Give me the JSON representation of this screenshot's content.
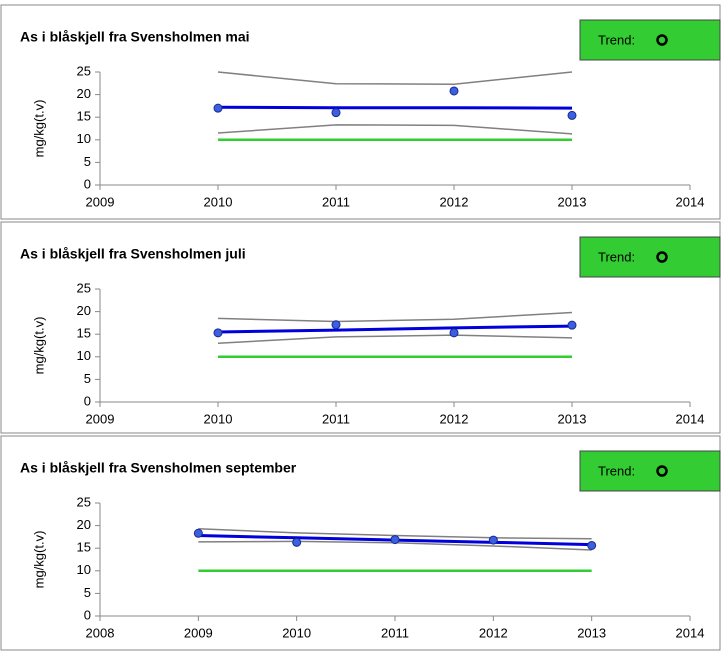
{
  "chart_data": [
    {
      "type": "line",
      "title": "As i blåskjell fra Svensholmen mai",
      "trend_label": "Trend:",
      "ylabel": "mg/kg(t.v)",
      "x": [
        2010,
        2011,
        2012,
        2013
      ],
      "xlim": [
        2009,
        2014
      ],
      "xticks": [
        2009,
        2010,
        2011,
        2012,
        2013,
        2014
      ],
      "ylim": [
        0,
        25
      ],
      "yticks": [
        0,
        5,
        10,
        15,
        20,
        25
      ],
      "points": {
        "color": "#3a5fe0",
        "values": [
          17,
          16,
          20.8,
          15.4
        ]
      },
      "series": [
        {
          "color": "#0000dd",
          "values": [
            17.2,
            17.1,
            17.1,
            17.0
          ]
        },
        {
          "color": "#808080",
          "values": [
            25,
            22.4,
            22.3,
            25
          ]
        },
        {
          "color": "#808080",
          "values": [
            11.5,
            13.3,
            13.2,
            11.3
          ]
        },
        {
          "color": "#33cc33",
          "values": [
            10,
            10,
            10,
            10
          ]
        }
      ]
    },
    {
      "type": "line",
      "title": "As i blåskjell fra Svensholmen juli",
      "trend_label": "Trend:",
      "ylabel": "mg/kg(t.v)",
      "x": [
        2010,
        2011,
        2012,
        2013
      ],
      "xlim": [
        2009,
        2014
      ],
      "xticks": [
        2009,
        2010,
        2011,
        2012,
        2013,
        2014
      ],
      "ylim": [
        0,
        25
      ],
      "yticks": [
        0,
        5,
        10,
        15,
        20,
        25
      ],
      "points": {
        "color": "#3a5fe0",
        "values": [
          15.3,
          17.1,
          15.3,
          17.0
        ]
      },
      "series": [
        {
          "color": "#0000dd",
          "values": [
            15.5,
            15.9,
            16.4,
            16.8
          ]
        },
        {
          "color": "#808080",
          "values": [
            18.5,
            17.8,
            18.3,
            19.8
          ]
        },
        {
          "color": "#808080",
          "values": [
            13.0,
            14.4,
            14.8,
            14.2
          ]
        },
        {
          "color": "#33cc33",
          "values": [
            10,
            10,
            10,
            10
          ]
        }
      ]
    },
    {
      "type": "line",
      "title": "As i blåskjell fra Svensholmen september",
      "trend_label": "Trend:",
      "ylabel": "mg/kg(t.v)",
      "x": [
        2009,
        2010,
        2011,
        2012,
        2013
      ],
      "xlim": [
        2008,
        2014
      ],
      "xticks": [
        2008,
        2009,
        2010,
        2011,
        2012,
        2013,
        2014
      ],
      "ylim": [
        0,
        25
      ],
      "yticks": [
        0,
        5,
        10,
        15,
        20,
        25
      ],
      "points": {
        "color": "#3a5fe0",
        "values": [
          18.3,
          16.3,
          16.9,
          16.8,
          15.6
        ]
      },
      "series": [
        {
          "color": "#0000dd",
          "values": [
            17.8,
            17.3,
            16.8,
            16.3,
            15.8
          ]
        },
        {
          "color": "#808080",
          "values": [
            19.3,
            18.4,
            17.8,
            17.3,
            17.1
          ]
        },
        {
          "color": "#808080",
          "values": [
            16.4,
            16.5,
            16.2,
            15.5,
            14.6
          ]
        },
        {
          "color": "#33cc33",
          "values": [
            10,
            10,
            10,
            10,
            10
          ]
        }
      ]
    }
  ]
}
